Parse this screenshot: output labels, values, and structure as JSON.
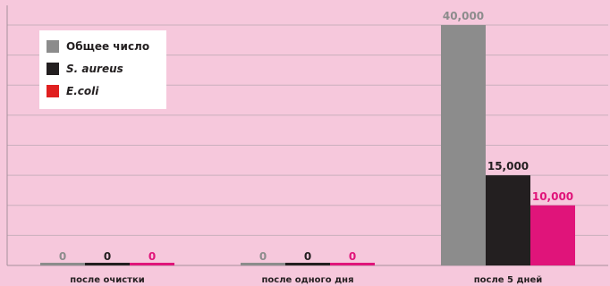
{
  "chart_data": {
    "type": "bar",
    "categories": [
      "после очистки",
      "после одного дня",
      "после 5 дней"
    ],
    "series": [
      {
        "name": "Общее число",
        "values": [
          0,
          0,
          40000
        ],
        "color": "#8c8c8c",
        "label_color": "#8c8c8c"
      },
      {
        "name": "S. aureus",
        "values": [
          0,
          0,
          15000
        ],
        "color": "#231f20",
        "label_color": "#231f20"
      },
      {
        "name": "E.coli",
        "values": [
          0,
          0,
          10000
        ],
        "color": "#e0147a",
        "label_color": "#e0147a"
      }
    ],
    "data_labels": [
      [
        "0",
        "0",
        "40,000"
      ],
      [
        "0",
        "0",
        "15,000"
      ],
      [
        "0",
        "0",
        "10,000"
      ]
    ],
    "ylim": [
      0,
      40000
    ],
    "grid": true,
    "legend_position": "top-left",
    "legend_swatch_colors": [
      "#8c8c8c",
      "#231f20",
      "#e02020"
    ]
  }
}
